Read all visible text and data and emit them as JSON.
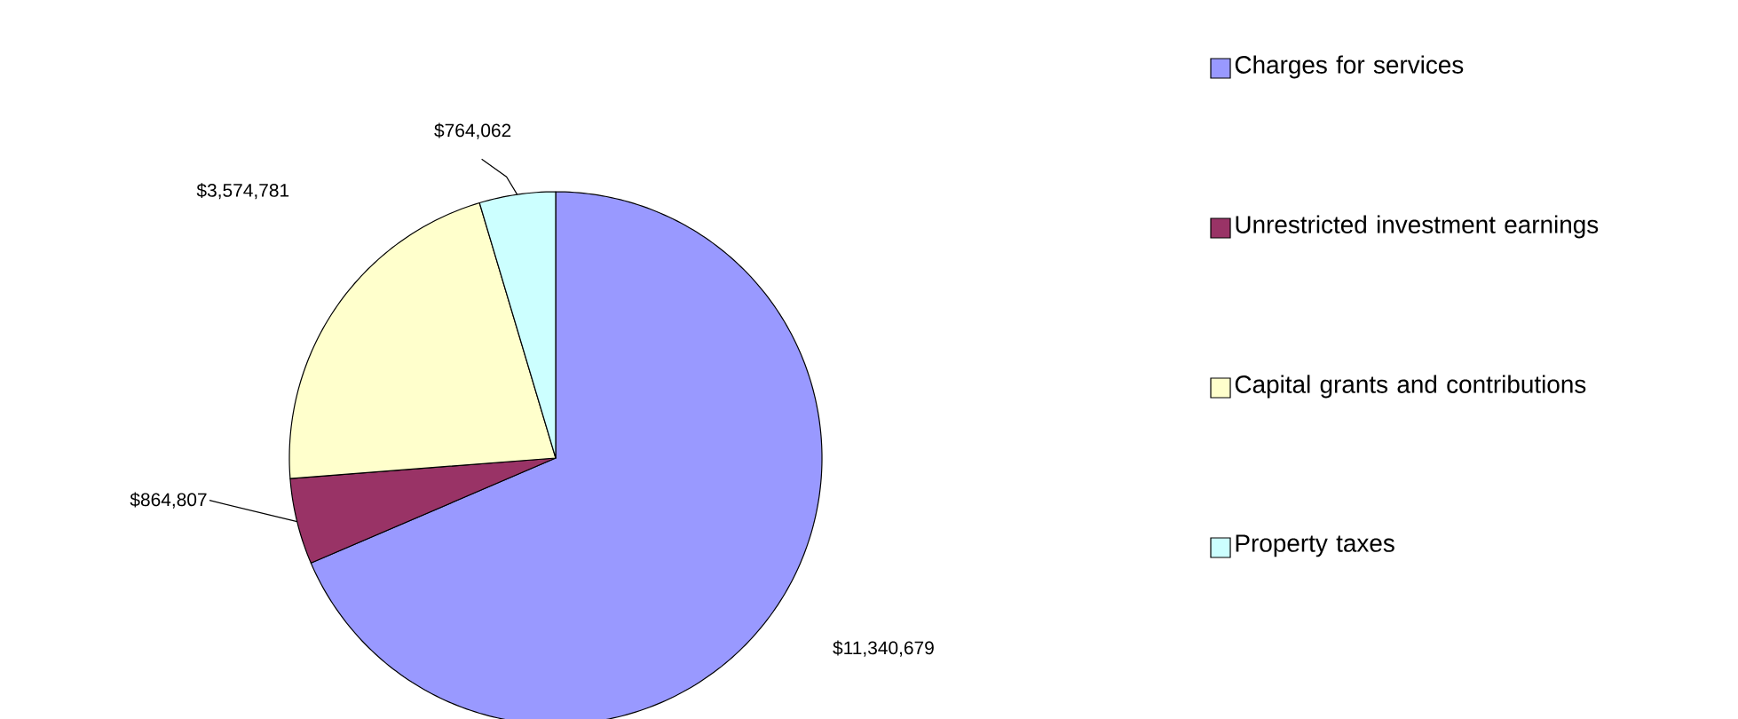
{
  "chart_data": {
    "type": "pie",
    "categories": [
      "Charges for services",
      "Unrestricted investment earnings",
      "Capital grants and contributions",
      "Property taxes"
    ],
    "values": [
      11340679,
      864807,
      3574781,
      764062
    ],
    "value_labels": [
      "$11,340,679",
      "$864,807",
      "$3,574,781",
      "$764,062"
    ],
    "colors": [
      "#9999ff",
      "#993366",
      "#ffffcc",
      "#ccffff"
    ],
    "legend": "right"
  }
}
